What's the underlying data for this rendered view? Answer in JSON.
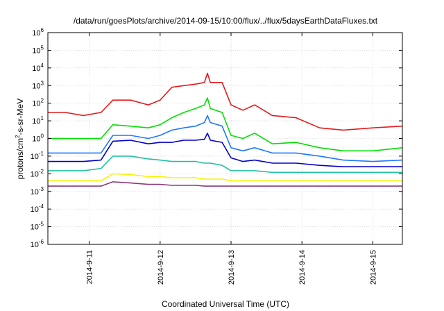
{
  "chart_data": {
    "type": "line",
    "title": "/data/run/goesPlots/archive/2014-09-15/10:00/flux/../flux/5daysEarthDataFluxes.txt",
    "xlabel": "Coordinated Universal Time (UTC)",
    "ylabel": {
      "prefix": "protons/cm",
      "superscript": "2",
      "suffix": "-s-sr-MeV"
    },
    "yscale": "log",
    "ylim": [
      1e-06,
      1000000.0
    ],
    "xlim": [
      "2014-09-10T10:00",
      "2014-09-15T10:00"
    ],
    "grid": true,
    "legend": "none",
    "y_ticks": [
      {
        "base": "10",
        "exp": "-6",
        "value": 1e-06
      },
      {
        "base": "10",
        "exp": "-5",
        "value": 1e-05
      },
      {
        "base": "10",
        "exp": "-4",
        "value": 0.0001
      },
      {
        "base": "10",
        "exp": "-3",
        "value": 0.001
      },
      {
        "base": "10",
        "exp": "-2",
        "value": 0.01
      },
      {
        "base": "10",
        "exp": "-1",
        "value": 0.1
      },
      {
        "base": "10",
        "exp": "0",
        "value": 1
      },
      {
        "base": "10",
        "exp": "1",
        "value": 10
      },
      {
        "base": "10",
        "exp": "2",
        "value": 100
      },
      {
        "base": "10",
        "exp": "3",
        "value": 1000
      },
      {
        "base": "10",
        "exp": "4",
        "value": 10000
      },
      {
        "base": "10",
        "exp": "5",
        "value": 100000
      },
      {
        "base": "10",
        "exp": "6",
        "value": 1000000
      }
    ],
    "x_ticks": [
      {
        "label": "2014-9-11",
        "value": "2014-09-11T00:00"
      },
      {
        "label": "2014-9-12",
        "value": "2014-09-12T00:00"
      },
      {
        "label": "2014-9-13",
        "value": "2014-09-13T00:00"
      },
      {
        "label": "2014-9-14",
        "value": "2014-09-14T00:00"
      },
      {
        "label": "2014-9-15",
        "value": "2014-09-15T00:00"
      }
    ],
    "series": [
      {
        "color": "#e41a1c",
        "x": [
          "2014-09-10T10:00",
          "2014-09-10T16:00",
          "2014-09-10T22:00",
          "2014-09-11T04:00",
          "2014-09-11T08:00",
          "2014-09-11T14:00",
          "2014-09-11T20:00",
          "2014-09-12T00:00",
          "2014-09-12T04:00",
          "2014-09-12T08:00",
          "2014-09-12T12:00",
          "2014-09-12T15:00",
          "2014-09-12T16:00",
          "2014-09-12T17:00",
          "2014-09-12T21:00",
          "2014-09-13T00:00",
          "2014-09-13T04:00",
          "2014-09-13T08:00",
          "2014-09-13T14:00",
          "2014-09-13T22:00",
          "2014-09-14T06:00",
          "2014-09-14T14:00",
          "2014-09-15T00:00",
          "2014-09-15T10:00"
        ],
        "y": [
          30,
          30,
          20,
          30,
          150,
          150,
          80,
          150,
          800,
          1000,
          1200,
          1500,
          5000,
          1500,
          1500,
          80,
          40,
          80,
          20,
          15,
          4,
          3,
          4,
          5
        ]
      },
      {
        "color": "#00e000",
        "x": [
          "2014-09-10T10:00",
          "2014-09-10T16:00",
          "2014-09-10T22:00",
          "2014-09-11T04:00",
          "2014-09-11T08:00",
          "2014-09-11T14:00",
          "2014-09-11T20:00",
          "2014-09-12T00:00",
          "2014-09-12T04:00",
          "2014-09-12T08:00",
          "2014-09-12T12:00",
          "2014-09-12T15:00",
          "2014-09-12T16:00",
          "2014-09-12T17:00",
          "2014-09-12T21:00",
          "2014-09-13T00:00",
          "2014-09-13T04:00",
          "2014-09-13T08:00",
          "2014-09-13T14:00",
          "2014-09-13T22:00",
          "2014-09-14T06:00",
          "2014-09-14T14:00",
          "2014-09-15T00:00",
          "2014-09-15T10:00"
        ],
        "y": [
          1,
          1,
          1,
          1,
          6,
          5,
          4,
          6,
          15,
          30,
          50,
          80,
          200,
          50,
          30,
          1.5,
          1,
          2,
          0.5,
          0.6,
          0.3,
          0.2,
          0.2,
          0.3
        ]
      },
      {
        "color": "#1e78ff",
        "x": [
          "2014-09-10T10:00",
          "2014-09-10T16:00",
          "2014-09-10T22:00",
          "2014-09-11T04:00",
          "2014-09-11T08:00",
          "2014-09-11T14:00",
          "2014-09-11T20:00",
          "2014-09-12T00:00",
          "2014-09-12T04:00",
          "2014-09-12T08:00",
          "2014-09-12T12:00",
          "2014-09-12T15:00",
          "2014-09-12T16:00",
          "2014-09-12T17:00",
          "2014-09-12T21:00",
          "2014-09-13T00:00",
          "2014-09-13T04:00",
          "2014-09-13T08:00",
          "2014-09-13T14:00",
          "2014-09-13T22:00",
          "2014-09-14T06:00",
          "2014-09-14T14:00",
          "2014-09-15T00:00",
          "2014-09-15T10:00"
        ],
        "y": [
          0.15,
          0.15,
          0.15,
          0.15,
          1.5,
          1.5,
          1,
          1.5,
          3,
          4,
          5,
          8,
          20,
          8,
          5,
          0.3,
          0.2,
          0.3,
          0.15,
          0.15,
          0.1,
          0.06,
          0.05,
          0.06
        ]
      },
      {
        "color": "#0000cd",
        "x": [
          "2014-09-10T10:00",
          "2014-09-10T16:00",
          "2014-09-10T22:00",
          "2014-09-11T04:00",
          "2014-09-11T08:00",
          "2014-09-11T14:00",
          "2014-09-11T20:00",
          "2014-09-12T00:00",
          "2014-09-12T04:00",
          "2014-09-12T08:00",
          "2014-09-12T12:00",
          "2014-09-12T15:00",
          "2014-09-12T16:00",
          "2014-09-12T17:00",
          "2014-09-12T21:00",
          "2014-09-13T00:00",
          "2014-09-13T04:00",
          "2014-09-13T08:00",
          "2014-09-13T14:00",
          "2014-09-13T22:00",
          "2014-09-14T06:00",
          "2014-09-14T14:00",
          "2014-09-15T00:00",
          "2014-09-15T10:00"
        ],
        "y": [
          0.05,
          0.05,
          0.05,
          0.06,
          0.7,
          0.8,
          0.5,
          0.6,
          0.6,
          0.8,
          0.8,
          0.9,
          2,
          0.8,
          0.6,
          0.08,
          0.05,
          0.06,
          0.04,
          0.04,
          0.03,
          0.025,
          0.025,
          0.025
        ]
      },
      {
        "color": "#20c0a0",
        "x": [
          "2014-09-10T10:00",
          "2014-09-10T16:00",
          "2014-09-10T22:00",
          "2014-09-11T04:00",
          "2014-09-11T08:00",
          "2014-09-11T14:00",
          "2014-09-11T20:00",
          "2014-09-12T00:00",
          "2014-09-12T04:00",
          "2014-09-12T08:00",
          "2014-09-12T12:00",
          "2014-09-12T15:00",
          "2014-09-12T16:00",
          "2014-09-12T17:00",
          "2014-09-12T21:00",
          "2014-09-13T00:00",
          "2014-09-13T04:00",
          "2014-09-13T08:00",
          "2014-09-13T14:00",
          "2014-09-13T22:00",
          "2014-09-14T06:00",
          "2014-09-14T14:00",
          "2014-09-15T00:00",
          "2014-09-15T10:00"
        ],
        "y": [
          0.015,
          0.015,
          0.015,
          0.02,
          0.1,
          0.1,
          0.07,
          0.06,
          0.05,
          0.05,
          0.05,
          0.04,
          0.04,
          0.04,
          0.03,
          0.015,
          0.015,
          0.015,
          0.012,
          0.012,
          0.012,
          0.012,
          0.012,
          0.012
        ]
      },
      {
        "color": "#f5f500",
        "x": [
          "2014-09-10T10:00",
          "2014-09-10T16:00",
          "2014-09-10T22:00",
          "2014-09-11T04:00",
          "2014-09-11T08:00",
          "2014-09-11T14:00",
          "2014-09-11T20:00",
          "2014-09-12T00:00",
          "2014-09-12T04:00",
          "2014-09-12T08:00",
          "2014-09-12T12:00",
          "2014-09-12T15:00",
          "2014-09-12T16:00",
          "2014-09-12T17:00",
          "2014-09-12T21:00",
          "2014-09-13T00:00",
          "2014-09-13T04:00",
          "2014-09-13T08:00",
          "2014-09-13T14:00",
          "2014-09-13T22:00",
          "2014-09-14T06:00",
          "2014-09-14T14:00",
          "2014-09-15T00:00",
          "2014-09-15T10:00"
        ],
        "y": [
          0.004,
          0.004,
          0.004,
          0.004,
          0.01,
          0.009,
          0.007,
          0.007,
          0.006,
          0.006,
          0.006,
          0.005,
          0.005,
          0.005,
          0.005,
          0.004,
          0.004,
          0.004,
          0.004,
          0.004,
          0.004,
          0.004,
          0.004,
          0.004
        ]
      },
      {
        "color": "#8b3a7a",
        "x": [
          "2014-09-10T10:00",
          "2014-09-10T16:00",
          "2014-09-10T22:00",
          "2014-09-11T04:00",
          "2014-09-11T08:00",
          "2014-09-11T14:00",
          "2014-09-11T20:00",
          "2014-09-12T00:00",
          "2014-09-12T04:00",
          "2014-09-12T08:00",
          "2014-09-12T12:00",
          "2014-09-12T15:00",
          "2014-09-12T16:00",
          "2014-09-12T17:00",
          "2014-09-12T21:00",
          "2014-09-13T00:00",
          "2014-09-13T04:00",
          "2014-09-13T08:00",
          "2014-09-13T14:00",
          "2014-09-13T22:00",
          "2014-09-14T06:00",
          "2014-09-14T14:00",
          "2014-09-15T00:00",
          "2014-09-15T10:00"
        ],
        "y": [
          0.002,
          0.002,
          0.002,
          0.002,
          0.0035,
          0.003,
          0.0025,
          0.0025,
          0.0022,
          0.0022,
          0.0022,
          0.002,
          0.002,
          0.002,
          0.002,
          0.002,
          0.002,
          0.002,
          0.002,
          0.002,
          0.002,
          0.002,
          0.002,
          0.002
        ]
      }
    ]
  }
}
